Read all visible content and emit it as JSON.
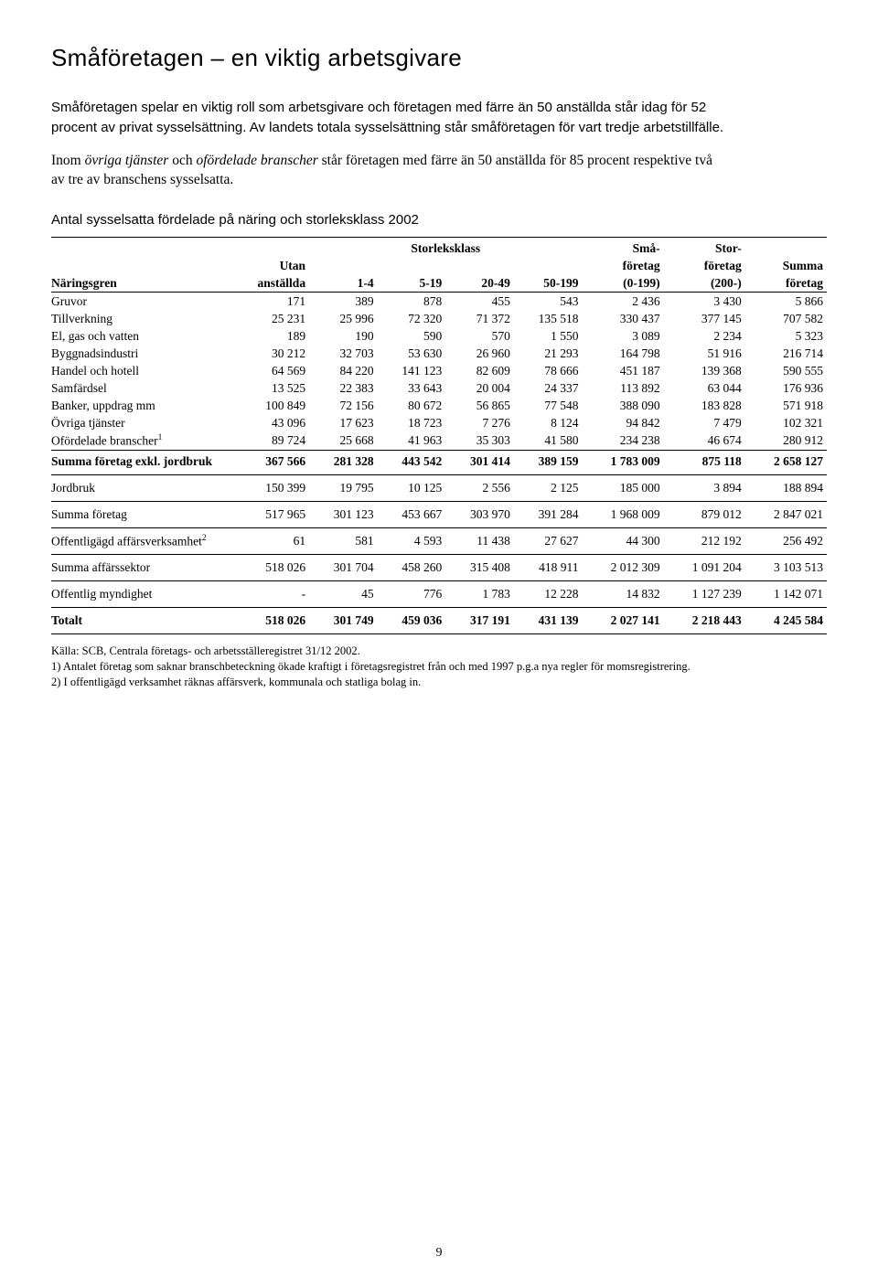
{
  "title": "Småföretagen – en viktig arbetsgivare",
  "intro": "Småföretagen spelar en viktig roll som arbetsgivare och företagen med färre än 50 anställda står idag för 52 procent av privat sysselsättning. Av landets totala sysselsättning står småföretagen för vart tredje arbetstillfälle.",
  "body_pre": "Inom ",
  "body_em1": "övriga tjänster",
  "body_mid": " och ",
  "body_em2": "ofördelade branscher",
  "body_post": " står företagen med färre än 50 anställda för 85 procent respektive två av tre av branschens sysselsatta.",
  "table_title": "Antal sysselsatta fördelade på näring och storleksklass 2002",
  "head": {
    "storleksklass": "Storleksklass",
    "naringsgren": "Näringsgren",
    "utan": "Utan",
    "anstallda": "anställda",
    "c14": "1-4",
    "c519": "5-19",
    "c2049": "20-49",
    "c50199": "50-199",
    "sma1": "Små-",
    "sma2": "företag",
    "sma3": "(0-199)",
    "stor1": "Stor-",
    "stor2": "företag",
    "stor3": "(200-)",
    "summa1": "Summa",
    "summa2": "företag"
  },
  "rows": [
    {
      "l": "Gruvor",
      "v": [
        "171",
        "389",
        "878",
        "455",
        "543",
        "2 436",
        "3 430",
        "5 866"
      ]
    },
    {
      "l": "Tillverkning",
      "v": [
        "25 231",
        "25 996",
        "72 320",
        "71 372",
        "135 518",
        "330 437",
        "377 145",
        "707 582"
      ]
    },
    {
      "l": "El, gas och vatten",
      "v": [
        "189",
        "190",
        "590",
        "570",
        "1 550",
        "3 089",
        "2 234",
        "5 323"
      ]
    },
    {
      "l": "Byggnadsindustri",
      "v": [
        "30 212",
        "32 703",
        "53 630",
        "26 960",
        "21 293",
        "164 798",
        "51 916",
        "216 714"
      ]
    },
    {
      "l": "Handel och hotell",
      "v": [
        "64 569",
        "84 220",
        "141 123",
        "82 609",
        "78 666",
        "451 187",
        "139 368",
        "590 555"
      ]
    },
    {
      "l": "Samfärdsel",
      "v": [
        "13 525",
        "22 383",
        "33 643",
        "20 004",
        "24 337",
        "113 892",
        "63 044",
        "176 936"
      ]
    },
    {
      "l": "Banker, uppdrag mm",
      "v": [
        "100 849",
        "72 156",
        "80 672",
        "56 865",
        "77 548",
        "388 090",
        "183 828",
        "571 918"
      ]
    },
    {
      "l": "Övriga tjänster",
      "v": [
        "43 096",
        "17 623",
        "18 723",
        "7 276",
        "8 124",
        "94 842",
        "7 479",
        "102 321"
      ]
    },
    {
      "l": "Ofördelade branscher",
      "sup": "1",
      "v": [
        "89 724",
        "25 668",
        "41 963",
        "35 303",
        "41 580",
        "234 238",
        "46 674",
        "280 912"
      ]
    }
  ],
  "sections": [
    {
      "l": "Summa företag exkl. jordbruk",
      "bold": true,
      "v": [
        "367 566",
        "281 328",
        "443 542",
        "301 414",
        "389 159",
        "1 783 009",
        "875 118",
        "2 658 127"
      ]
    },
    {
      "l": "Jordbruk",
      "v": [
        "150 399",
        "19 795",
        "10 125",
        "2 556",
        "2 125",
        "185 000",
        "3 894",
        "188 894"
      ]
    },
    {
      "l": "Summa företag",
      "v": [
        "517 965",
        "301 123",
        "453 667",
        "303 970",
        "391 284",
        "1 968 009",
        "879 012",
        "2 847 021"
      ]
    },
    {
      "l": "Offentligägd affärsverksamhet",
      "sup": "2",
      "v": [
        "61",
        "581",
        "4 593",
        "11 438",
        "27 627",
        "44 300",
        "212 192",
        "256 492"
      ]
    },
    {
      "l": "Summa affärssektor",
      "v": [
        "518 026",
        "301 704",
        "458 260",
        "315 408",
        "418 911",
        "2 012 309",
        "1 091 204",
        "3 103 513"
      ]
    },
    {
      "l": "Offentlig myndighet",
      "v": [
        "-",
        "45",
        "776",
        "1 783",
        "12 228",
        "14 832",
        "1 127 239",
        "1 142 071"
      ]
    },
    {
      "l": "Totalt",
      "bold": true,
      "v": [
        "518 026",
        "301 749",
        "459 036",
        "317 191",
        "431 139",
        "2 027 141",
        "2 218 443",
        "4 245 584"
      ]
    }
  ],
  "footnotes": [
    "Källa: SCB, Centrala företags- och arbetsställeregistret 31/12 2002.",
    "1) Antalet företag som saknar branschbeteckning ökade kraftigt i företagsregistret från och med 1997 p.g.a nya regler för momsregistrering.",
    "2) I offentligägd verksamhet räknas affärsverk, kommunala och statliga bolag in."
  ],
  "pageno": "9"
}
